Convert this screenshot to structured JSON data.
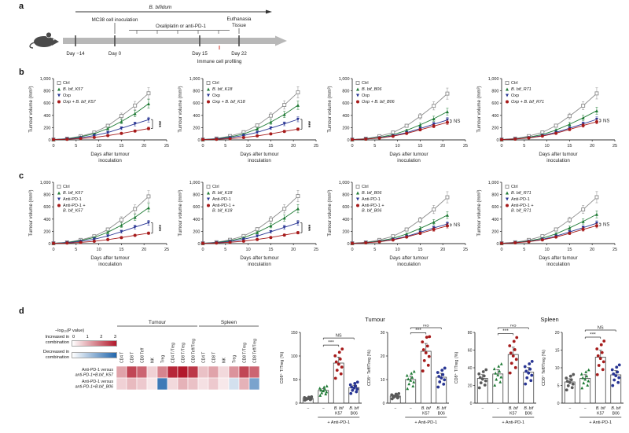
{
  "panel_labels": {
    "a": "a",
    "b": "b",
    "c": "c",
    "d": "d"
  },
  "colors": {
    "ctrl": "#8c8c8c",
    "bbif_green": "#1e7a34",
    "treatment_navy": "#283593",
    "combo_red": "#a61b1b",
    "profiling_red": "#d1342a",
    "tissue_blue": "#2b5fd9",
    "heat_red": "#b2182b",
    "heat_blue": "#2166ac",
    "timeline_gray": "#b8b8b8"
  },
  "timeline": {
    "bbif": "B. bifidum",
    "mc38": "MC38 cell inoculation",
    "treatment": "Oxaliplatin or anti-PD-1",
    "euthanasia": "Euthanasia",
    "tissue": "Tissue",
    "profiling": "Immune cell profiling",
    "days": [
      "Day −14",
      "Day 0",
      "Day 15",
      "Day 22"
    ]
  },
  "dot_titles": {
    "tumour": "Tumour",
    "spleen": "Spleen"
  },
  "heatmap_legend": {
    "title": "−log₁₀(P value)",
    "increase": "Increased in combination",
    "decrease": "Decreased in combination",
    "ticks": [
      0,
      1,
      2,
      3
    ]
  },
  "line_axis": {
    "x": [
      0,
      3,
      6,
      9,
      12,
      15,
      18,
      21
    ],
    "xmax": 25,
    "xticks": [
      0,
      5,
      10,
      15,
      20,
      25
    ],
    "ylim": [
      0,
      1000
    ],
    "ytick_vals": [
      0,
      200,
      400,
      600,
      800,
      1000
    ],
    "yticks": [
      "0",
      "200",
      "400",
      "600",
      "800",
      "1,000"
    ],
    "ylabel": "Tumour volume (mm³)",
    "xlabel_lines": [
      "Days after tumour",
      "inoculation"
    ]
  },
  "dot_shared": {
    "cat_line1": [
      "−",
      "−",
      "B. bif",
      "B. bif"
    ],
    "cat_line2": [
      "",
      "",
      "K57",
      "B06"
    ],
    "xgroup": "+ Anti-PD-1",
    "colors": [
      "#5a5a5a",
      "#1e7a34",
      "#a61b1b",
      "#283593"
    ],
    "markers": [
      "circle",
      "triangle",
      "circle",
      "circle"
    ],
    "sig": [
      {
        "label": "***",
        "a": 1,
        "b": 2
      },
      {
        "label": "NS",
        "a": 1,
        "b": 3
      }
    ]
  },
  "chart_data": [
    {
      "type": "line",
      "sig": "***",
      "series": [
        {
          "name": "Ctrl",
          "color": "#8c8c8c",
          "marker": "square-open",
          "values": [
            5,
            20,
            60,
            120,
            230,
            390,
            560,
            760
          ]
        },
        {
          "name": "B. bif_K57",
          "color": "#1e7a34",
          "marker": "triangle",
          "values": [
            5,
            18,
            50,
            100,
            185,
            300,
            430,
            590
          ]
        },
        {
          "name": "Oxp",
          "color": "#283593",
          "marker": "triangle-down",
          "values": [
            5,
            15,
            35,
            70,
            120,
            190,
            260,
            330
          ]
        },
        {
          "name": "Oxp + B. bif_K57",
          "color": "#a61b1b",
          "marker": "circle",
          "values": [
            5,
            10,
            22,
            40,
            70,
            105,
            145,
            185
          ]
        }
      ]
    },
    {
      "type": "line",
      "sig": "***",
      "series": [
        {
          "name": "Ctrl",
          "color": "#8c8c8c",
          "marker": "square-open",
          "values": [
            5,
            22,
            62,
            125,
            235,
            395,
            570,
            775
          ]
        },
        {
          "name": "B. bif_K18",
          "color": "#1e7a34",
          "marker": "triangle",
          "values": [
            5,
            18,
            48,
            95,
            180,
            290,
            415,
            565
          ]
        },
        {
          "name": "Oxp",
          "color": "#283593",
          "marker": "triangle-down",
          "values": [
            5,
            15,
            36,
            72,
            122,
            192,
            262,
            335
          ]
        },
        {
          "name": "Oxp + B. bif_K18",
          "color": "#a61b1b",
          "marker": "circle",
          "values": [
            5,
            10,
            20,
            38,
            65,
            98,
            138,
            175
          ]
        }
      ]
    },
    {
      "type": "line",
      "sig": "NS",
      "series": [
        {
          "name": "Ctrl",
          "color": "#8c8c8c",
          "marker": "square-open",
          "values": [
            5,
            20,
            60,
            120,
            230,
            385,
            555,
            755
          ]
        },
        {
          "name": "B. bif_B06",
          "color": "#1e7a34",
          "marker": "triangle",
          "values": [
            5,
            16,
            42,
            85,
            155,
            245,
            345,
            460
          ]
        },
        {
          "name": "Oxp",
          "color": "#283593",
          "marker": "triangle-down",
          "values": [
            5,
            14,
            34,
            68,
            118,
            185,
            255,
            325
          ]
        },
        {
          "name": "Oxp + B. bif_B06",
          "color": "#a61b1b",
          "marker": "circle",
          "values": [
            5,
            13,
            30,
            60,
            105,
            165,
            225,
            285
          ]
        }
      ]
    },
    {
      "type": "line",
      "sig": "NS",
      "series": [
        {
          "name": "Ctrl",
          "color": "#8c8c8c",
          "marker": "square-open",
          "values": [
            5,
            21,
            61,
            122,
            232,
            388,
            558,
            758
          ]
        },
        {
          "name": "B. bif_R71",
          "color": "#1e7a34",
          "marker": "triangle",
          "values": [
            5,
            17,
            44,
            88,
            160,
            255,
            360,
            475
          ]
        },
        {
          "name": "Oxp",
          "color": "#283593",
          "marker": "triangle-down",
          "values": [
            5,
            15,
            36,
            70,
            122,
            190,
            262,
            335
          ]
        },
        {
          "name": "Oxp + B. bif_R71",
          "color": "#a61b1b",
          "marker": "circle",
          "values": [
            5,
            13,
            32,
            62,
            108,
            170,
            235,
            295
          ]
        }
      ]
    },
    {
      "type": "line",
      "sig": "***",
      "series": [
        {
          "name": "Ctrl",
          "color": "#8c8c8c",
          "marker": "square-open",
          "values": [
            5,
            20,
            60,
            120,
            230,
            390,
            565,
            770
          ]
        },
        {
          "name": "B. bif_K57",
          "color": "#1e7a34",
          "marker": "triangle",
          "values": [
            5,
            18,
            50,
            100,
            185,
            300,
            430,
            585
          ]
        },
        {
          "name": "Anti-PD-1",
          "color": "#283593",
          "marker": "triangle-down",
          "values": [
            5,
            15,
            36,
            72,
            125,
            195,
            268,
            340
          ]
        },
        {
          "name": "Anti-PD-1 +\nB. bif_K57",
          "color": "#a61b1b",
          "marker": "circle",
          "values": [
            5,
            9,
            20,
            38,
            65,
            98,
            135,
            170
          ]
        }
      ]
    },
    {
      "type": "line",
      "sig": "***",
      "series": [
        {
          "name": "Ctrl",
          "color": "#8c8c8c",
          "marker": "square-open",
          "values": [
            5,
            22,
            62,
            124,
            234,
            394,
            568,
            775
          ]
        },
        {
          "name": "B. bif_K18",
          "color": "#1e7a34",
          "marker": "triangle",
          "values": [
            5,
            18,
            48,
            96,
            182,
            292,
            418,
            570
          ]
        },
        {
          "name": "Anti-PD-1",
          "color": "#283593",
          "marker": "triangle-down",
          "values": [
            5,
            15,
            35,
            71,
            123,
            193,
            265,
            338
          ]
        },
        {
          "name": "Anti-PD-1 +\nB. bif_K18",
          "color": "#a61b1b",
          "marker": "circle",
          "values": [
            5,
            10,
            21,
            40,
            68,
            100,
            140,
            178
          ]
        }
      ]
    },
    {
      "type": "line",
      "sig": "NS",
      "series": [
        {
          "name": "Ctrl",
          "color": "#8c8c8c",
          "marker": "square-open",
          "values": [
            5,
            20,
            60,
            120,
            230,
            386,
            556,
            756
          ]
        },
        {
          "name": "B. bif_B06",
          "color": "#1e7a34",
          "marker": "triangle",
          "values": [
            5,
            16,
            42,
            86,
            156,
            248,
            350,
            465
          ]
        },
        {
          "name": "Anti-PD-1",
          "color": "#283593",
          "marker": "triangle-down",
          "values": [
            5,
            14,
            34,
            68,
            118,
            185,
            255,
            320
          ]
        },
        {
          "name": "Anti-PD-1 +\nB. bif_B06",
          "color": "#a61b1b",
          "marker": "circle",
          "values": [
            5,
            13,
            30,
            60,
            108,
            168,
            230,
            290
          ]
        }
      ]
    },
    {
      "type": "line",
      "sig": "NS",
      "series": [
        {
          "name": "Ctrl",
          "color": "#8c8c8c",
          "marker": "square-open",
          "values": [
            5,
            21,
            60,
            121,
            231,
            387,
            557,
            757
          ]
        },
        {
          "name": "B. bif_R71",
          "color": "#1e7a34",
          "marker": "triangle",
          "values": [
            5,
            17,
            44,
            88,
            160,
            256,
            362,
            478
          ]
        },
        {
          "name": "Anti-PD-1",
          "color": "#283593",
          "marker": "triangle-down",
          "values": [
            5,
            15,
            36,
            70,
            122,
            190,
            260,
            332
          ]
        },
        {
          "name": "Anti-PD-1 +\nB. bif_R71",
          "color": "#a61b1b",
          "marker": "circle",
          "values": [
            5,
            13,
            31,
            61,
            107,
            168,
            232,
            292
          ]
        }
      ]
    },
    {
      "type": "heatmap",
      "col_groups": [
        {
          "label": "Tumour",
          "span": 8
        },
        {
          "label": "Spleen",
          "span": 6
        }
      ],
      "columns": [
        "CD4 T",
        "CD8 T",
        "CD8 Teff",
        "NK",
        "Treg",
        "CD4 T/Treg",
        "CD8 T/Treg",
        "CD8 Teff/Treg",
        "CD4 T",
        "CD8 T",
        "NK",
        "Treg",
        "CD8 T/Treg",
        "CD8 Teff/Treg"
      ],
      "rows": [
        "Anti-PD-1 versus\nanti-PD-1+B.bif_K57",
        "Anti-PD-1 versus\nanti-PD-1+B.bif_B06"
      ],
      "values": [
        [
          1.2,
          2.4,
          2.0,
          0.6,
          1.6,
          2.8,
          3.0,
          2.6,
          0.8,
          1.2,
          0.5,
          1.4,
          2.4,
          2.0
        ],
        [
          0.6,
          0.9,
          0.7,
          0.3,
          -2.6,
          0.5,
          1.0,
          0.8,
          0.4,
          0.7,
          0.3,
          -0.6,
          1.0,
          -1.8
        ]
      ],
      "legend_ticks": [
        0,
        1,
        2,
        3
      ]
    },
    {
      "type": "dots",
      "ylabel": "CD8⁺ T/Treg (%)",
      "ylim": [
        0,
        150
      ],
      "yticks": [
        0,
        50,
        100,
        150
      ],
      "values": [
        10,
        27,
        85,
        33
      ]
    },
    {
      "type": "dots",
      "ylabel": "CD8⁺ Teff/Treg (%)",
      "ylim": [
        0,
        30
      ],
      "yticks": [
        0,
        10,
        20,
        30
      ],
      "values": [
        3,
        10,
        22,
        11
      ]
    },
    {
      "type": "dots",
      "ylabel": "CD8⁺ T/Treg (%)",
      "ylim": [
        0,
        80
      ],
      "yticks": [
        0,
        20,
        40,
        60,
        80
      ],
      "values": [
        28,
        33,
        55,
        35
      ]
    },
    {
      "type": "dots",
      "ylabel": "CD8⁺ Teff/Treg (%)",
      "ylim": [
        0,
        20
      ],
      "yticks": [
        0,
        5,
        10,
        15,
        20
      ],
      "values": [
        6,
        7,
        13,
        8
      ]
    }
  ]
}
